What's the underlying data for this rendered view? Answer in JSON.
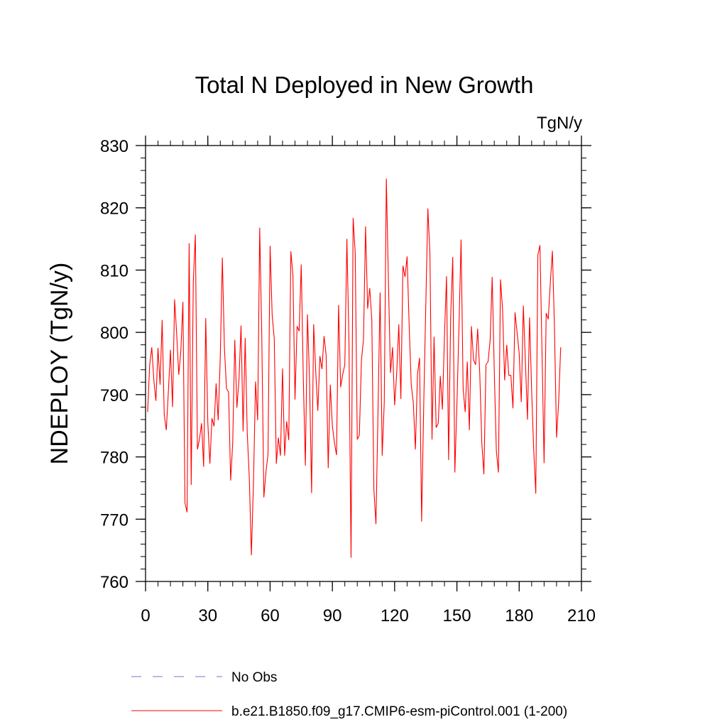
{
  "chart_data": {
    "type": "line",
    "title": "Total N Deployed in New Growth",
    "units": "TgN/y",
    "ylabel": "NDEPLOY  (TgN/y)",
    "xlabel": "",
    "xlim": [
      0,
      210
    ],
    "ylim": [
      760,
      830
    ],
    "xticks": [
      0,
      30,
      60,
      90,
      120,
      150,
      180,
      210
    ],
    "yticks": [
      760,
      770,
      780,
      790,
      800,
      810,
      820,
      830
    ],
    "xtick_labels": [
      "0",
      "30",
      "60",
      "90",
      "120",
      "150",
      "180",
      "210"
    ],
    "ytick_labels": [
      "760",
      "770",
      "780",
      "790",
      "800",
      "810",
      "820",
      "830"
    ],
    "x_minor_step": 6,
    "y_minor_step": 2,
    "legend_position": "bottom-left",
    "series": [
      {
        "name": "No Obs",
        "color": "#7b6fc9",
        "style": "dashed",
        "values": []
      },
      {
        "name": "b.e21.B1850.f09_g17.CMIP6-esm-piControl.001 (1-200)",
        "color": "#ff0000",
        "style": "solid",
        "x_start": 1,
        "values": [
          787.2,
          794.8,
          797.6,
          792.3,
          789.0,
          797.5,
          791.6,
          802.0,
          786.8,
          784.3,
          790.5,
          797.2,
          788.0,
          805.3,
          799.7,
          793.2,
          797.0,
          804.9,
          772.6,
          771.1,
          814.3,
          775.5,
          808.1,
          815.7,
          781.2,
          782.9,
          785.4,
          778.4,
          802.3,
          785.5,
          778.9,
          786.2,
          784.9,
          791.8,
          785.9,
          796.0,
          812.0,
          797.5,
          791.0,
          790.4,
          776.2,
          782.3,
          798.8,
          787.9,
          792.3,
          801.1,
          784.1,
          799.1,
          783.8,
          776.5,
          764.2,
          776.0,
          792.1,
          785.9,
          816.8,
          799.4,
          773.5,
          777.6,
          780.4,
          813.9,
          802.8,
          799.0,
          778.9,
          783.1,
          780.2,
          794.2,
          780.2,
          785.7,
          782.7,
          813.0,
          809.2,
          789.2,
          801.0,
          800.2,
          810.9,
          792.6,
          778.6,
          802.9,
          792.4,
          774.2,
          801.3,
          793.6,
          787.4,
          796.2,
          794.1,
          799.4,
          796.3,
          778.2,
          791.6,
          785.0,
          782.3,
          780.3,
          804.4,
          791.2,
          793.3,
          794.8,
          815.0,
          798.3,
          763.8,
          818.4,
          812.8,
          782.8,
          783.5,
          795.5,
          798.9,
          817.0,
          803.8,
          807.1,
          802.0,
          774.8,
          769.2,
          787.5,
          806.4,
          780.2,
          788.7,
          824.7,
          808.3,
          793.5,
          797.6,
          788.3,
          793.5,
          801.3,
          789.3,
          810.7,
          808.9,
          812.2,
          801.1,
          791.6,
          788.7,
          781.2,
          793.2,
          795.9,
          769.6,
          788.1,
          804.2,
          819.9,
          812.7,
          782.8,
          799.3,
          784.7,
          785.4,
          793.0,
          787.6,
          799.4,
          809.0,
          779.5,
          802.6,
          812.1,
          777.5,
          788.4,
          801.0,
          814.9,
          790.9,
          787.2,
          795.3,
          784.3,
          801.0,
          795.6,
          794.8,
          800.6,
          793.5,
          782.2,
          777.2,
          794.8,
          795.3,
          798.7,
          808.9,
          793.8,
          781.0,
          777.5,
          808.5,
          803.7,
          792.3,
          798.0,
          793.1,
          793.1,
          787.8,
          803.2,
          800.0,
          796.6,
          788.8,
          804.3,
          795.3,
          786.0,
          802.4,
          790.7,
          781.1,
          774.1,
          812.4,
          814.0,
          796.8,
          779.0,
          803.1,
          802.1,
          808.0,
          813.1,
          800.7,
          783.1,
          788.8,
          797.6
        ]
      }
    ]
  }
}
